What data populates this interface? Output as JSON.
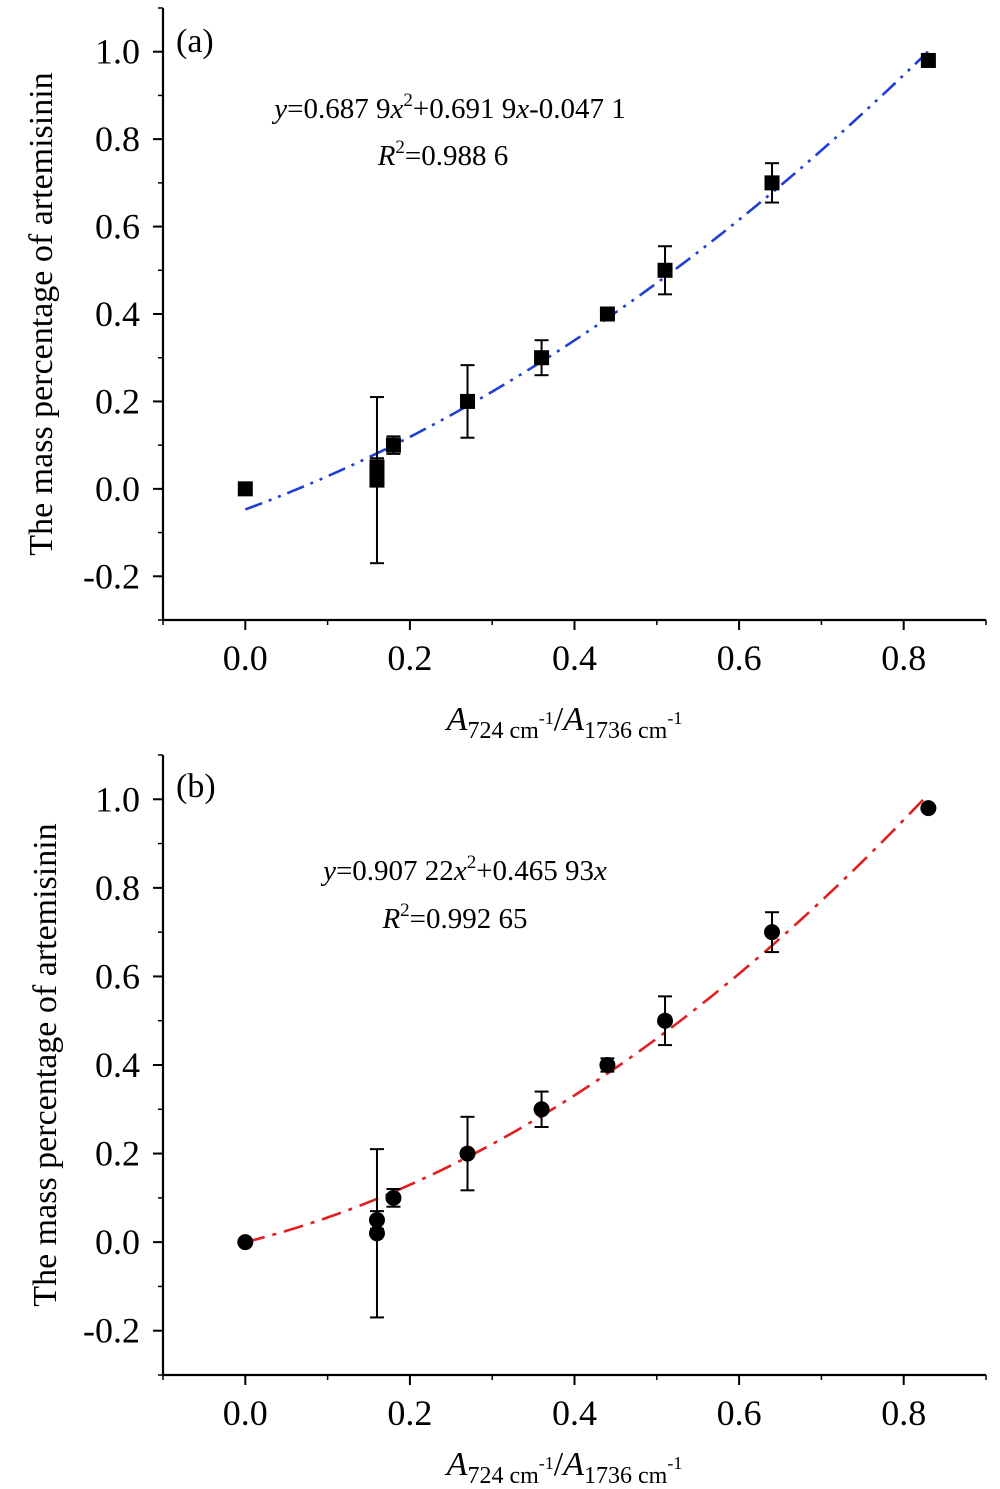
{
  "chart_data": [
    {
      "panel": "(a)",
      "type": "scatter",
      "marker": "square",
      "ylabel": "The mass percentage of artemisinin",
      "xlabel_parts": {
        "sym1": "A",
        "sub1": "724 cm",
        "sup1": "-1",
        "slash": "/",
        "sym2": "A",
        "sub2": "1736 cm",
        "sup2": "-1"
      },
      "xlim": [
        -0.1,
        0.9
      ],
      "ylim": [
        -0.3,
        1.1
      ],
      "xticks": [
        "0.0",
        "0.2",
        "0.4",
        "0.6",
        "0.8"
      ],
      "yticks": [
        "-0.2",
        "0.0",
        "0.2",
        "0.4",
        "0.6",
        "0.8",
        "1.0"
      ],
      "grid": false,
      "equation": {
        "y": "y",
        "p1": "=0.687 9",
        "x1": "x",
        "sup": "2",
        "p2": "+0.691 9",
        "x2": "x",
        "p3": "-0.047 1"
      },
      "r2": {
        "r": "R",
        "sup": "2",
        "val": "=0.988 6"
      },
      "fit": {
        "a": 0.6879,
        "b": 0.6919,
        "c": -0.0471,
        "x_range": [
          0,
          0.83
        ],
        "color": "#1f3fd6",
        "style": "dash-dot-dot"
      },
      "points": [
        {
          "x": 0.0,
          "y": 0.0,
          "err": null
        },
        {
          "x": 0.16,
          "y": 0.02,
          "err": 0.19
        },
        {
          "x": 0.16,
          "y": 0.05,
          "err": 0.02
        },
        {
          "x": 0.18,
          "y": 0.1,
          "err": 0.02
        },
        {
          "x": 0.27,
          "y": 0.2,
          "err": 0.083
        },
        {
          "x": 0.36,
          "y": 0.3,
          "err": 0.04
        },
        {
          "x": 0.44,
          "y": 0.4,
          "err": 0.01
        },
        {
          "x": 0.51,
          "y": 0.5,
          "err": 0.055
        },
        {
          "x": 0.64,
          "y": 0.7,
          "err": 0.045
        },
        {
          "x": 0.83,
          "y": 0.98,
          "err": null
        }
      ]
    },
    {
      "panel": "(b)",
      "type": "scatter",
      "marker": "circle",
      "ylabel": "The mass percentage of  artemisinin",
      "xlabel_parts": {
        "sym1": "A",
        "sub1": "724 cm",
        "sup1": "-1",
        "slash": "/",
        "sym2": "A",
        "sub2": "1736 cm",
        "sup2": "-1"
      },
      "xlim": [
        -0.1,
        0.9
      ],
      "ylim": [
        -0.3,
        1.1
      ],
      "xticks": [
        "0.0",
        "0.2",
        "0.4",
        "0.6",
        "0.8"
      ],
      "yticks": [
        "-0.2",
        "0.0",
        "0.2",
        "0.4",
        "0.6",
        "0.8",
        "1.0"
      ],
      "grid": false,
      "equation": {
        "y": "y",
        "p1": "=0.907 22",
        "x1": "x",
        "sup": "2",
        "p2": "+0.465 93",
        "x2": "x",
        "p3": ""
      },
      "r2": {
        "r": "R",
        "sup": "2",
        "val": "=0.992 65"
      },
      "fit": {
        "a": 0.90722,
        "b": 0.46593,
        "c": 0,
        "x_range": [
          0,
          0.83
        ],
        "color": "#e02020",
        "style": "dash-dot"
      },
      "points": [
        {
          "x": 0.0,
          "y": 0.0,
          "err": null
        },
        {
          "x": 0.16,
          "y": 0.02,
          "err": 0.19
        },
        {
          "x": 0.16,
          "y": 0.05,
          "err": 0.02
        },
        {
          "x": 0.18,
          "y": 0.1,
          "err": 0.02
        },
        {
          "x": 0.27,
          "y": 0.2,
          "err": 0.083
        },
        {
          "x": 0.36,
          "y": 0.3,
          "err": 0.04
        },
        {
          "x": 0.44,
          "y": 0.4,
          "err": 0.015
        },
        {
          "x": 0.51,
          "y": 0.5,
          "err": 0.055
        },
        {
          "x": 0.64,
          "y": 0.7,
          "err": 0.045
        },
        {
          "x": 0.83,
          "y": 0.98,
          "err": null
        }
      ]
    }
  ]
}
